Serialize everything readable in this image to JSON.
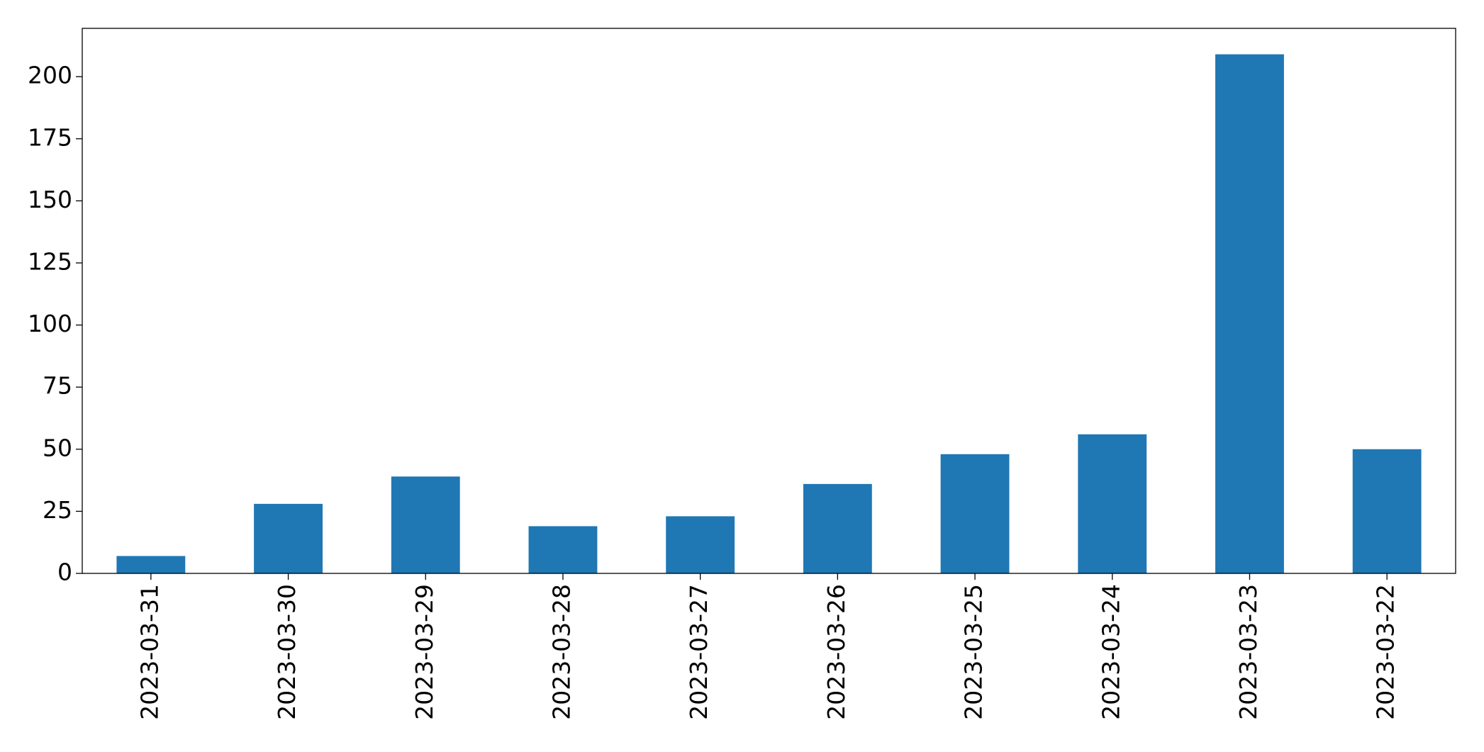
{
  "chart_data": {
    "type": "bar",
    "categories": [
      "2023-03-31",
      "2023-03-30",
      "2023-03-29",
      "2023-03-28",
      "2023-03-27",
      "2023-03-26",
      "2023-03-25",
      "2023-03-24",
      "2023-03-23",
      "2023-03-22"
    ],
    "values": [
      7,
      28,
      39,
      19,
      23,
      36,
      48,
      56,
      209,
      50
    ],
    "color": "#1f77b4",
    "ylim": [
      0,
      219.45
    ],
    "yticks": [
      0,
      25,
      50,
      75,
      100,
      125,
      150,
      175,
      200
    ],
    "grid": false
  }
}
